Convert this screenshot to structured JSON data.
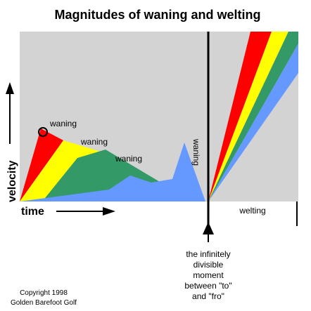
{
  "title": "Magnitudes of waning and welting",
  "annotations": [
    "waning",
    "waning",
    "waning"
  ],
  "peak_label": "waning",
  "y_axis_label": "velocity",
  "x_axis_label": "time",
  "region_label": "welting",
  "moment_label": [
    "the infinitely",
    "divisible",
    "moment",
    "between \"to\"",
    "and \"fro\""
  ],
  "copyright": [
    "Copyright 1998",
    "Golden Barefoot Golf"
  ]
}
